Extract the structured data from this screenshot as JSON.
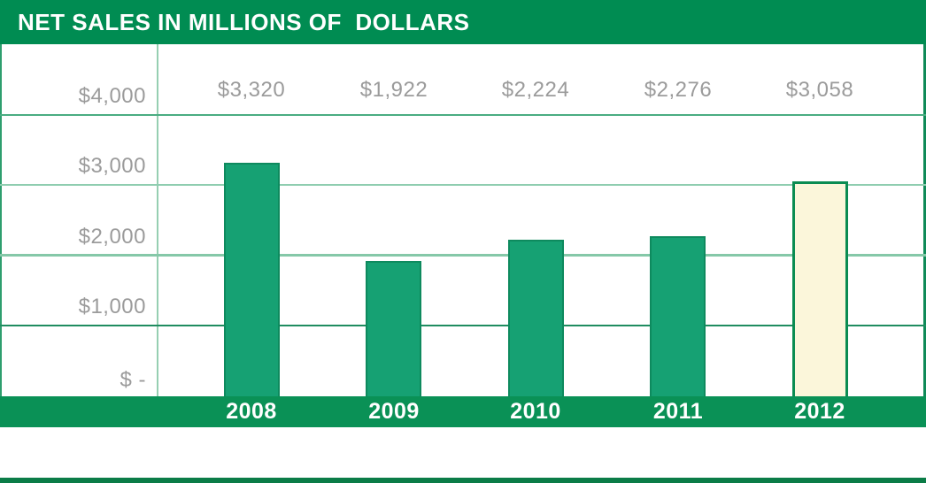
{
  "title": "NET SALES IN MILLIONS OF  DOLLARS",
  "chart_data": {
    "type": "bar",
    "title": "NET SALES IN MILLIONS OF  DOLLARS",
    "categories": [
      "2008",
      "2009",
      "2010",
      "2011",
      "2012"
    ],
    "values": [
      3320,
      1922,
      2224,
      2276,
      3058
    ],
    "data_labels": [
      "$3,320",
      "$1,922",
      "$2,224",
      "$2,276",
      "$3,058"
    ],
    "y_ticks": [
      {
        "value": 4000,
        "label": "$4,000",
        "line_color": "#4aad82"
      },
      {
        "value": 3000,
        "label": "$3,000",
        "line_color": "#8fcdb0"
      },
      {
        "value": 2000,
        "label": "$2,000",
        "line_color": "#85c8a8"
      },
      {
        "value": 1000,
        "label": "$1,000",
        "line_color": "#1f8c60"
      },
      {
        "value": 0,
        "label": "$ -",
        "line_color": null
      }
    ],
    "xlabel": "",
    "ylabel": "",
    "ylim": [
      0,
      5000
    ],
    "grid": true,
    "legend": false,
    "highlight_category": "2012",
    "note": "2012 bar highlighted in cream; all other bars green"
  },
  "colors": {
    "header_bg": "#008c52",
    "band_bg": "#0a9156",
    "bottom_strip": "#0b7c47",
    "bar_fill": "#16a173",
    "bar_border": "#0e8a5e",
    "highlight_fill": "#fbf6da",
    "highlight_border": "#0a8c52",
    "label_gray": "#9b9b9b",
    "axis_line": "#96cfb2",
    "left_border": "#2e9e6e",
    "right_border": "#0f8a58",
    "title_color": "#ffffff",
    "year_color": "#ffffff"
  }
}
